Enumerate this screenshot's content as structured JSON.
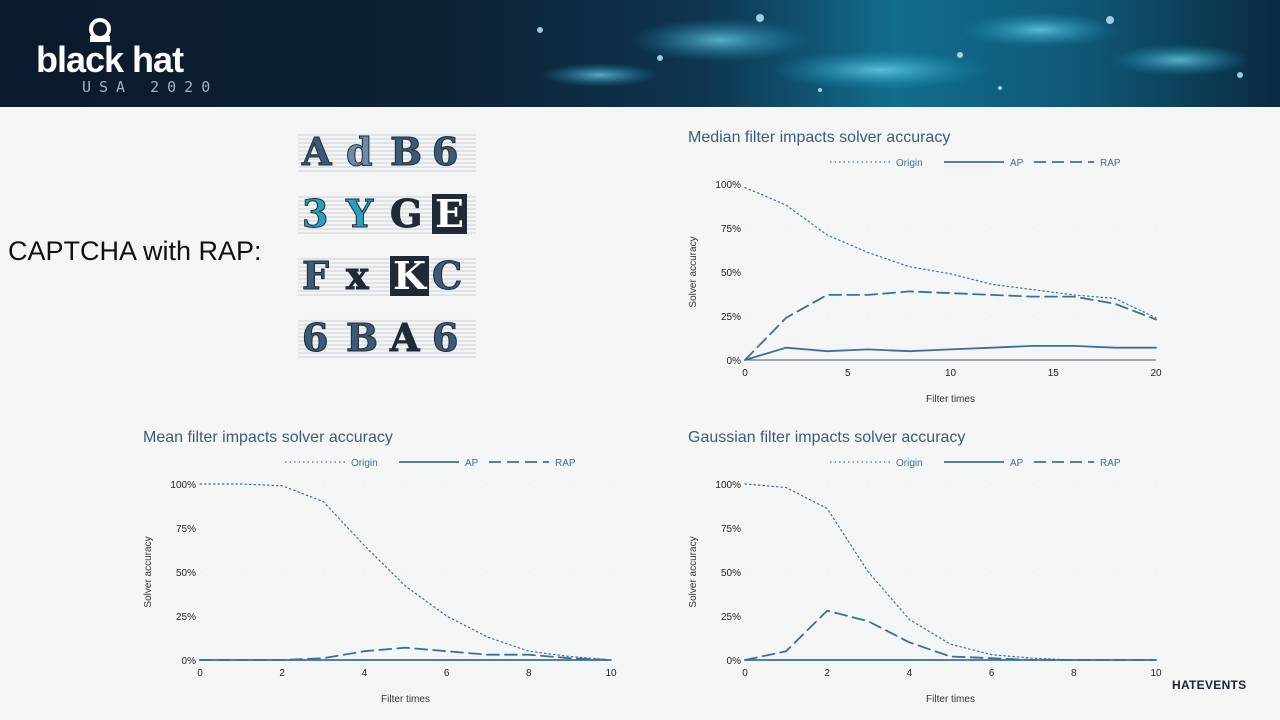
{
  "header": {
    "logo_text": "black hat",
    "logo_subtext": "USA 2020"
  },
  "captcha_title": "CAPTCHA with RAP:",
  "captchas": [
    {
      "chars": [
        "A",
        "d",
        "B",
        "6"
      ],
      "colors": [
        "#3b5a78",
        "#6f8aa8",
        "#3b5a78",
        "#3b5a78"
      ]
    },
    {
      "chars": [
        "3",
        "Y",
        "G",
        "E"
      ],
      "colors": [
        "#2aa0c0",
        "#2aa0c0",
        "#1f2a36",
        "#ffffff"
      ]
    },
    {
      "chars": [
        "F",
        "x",
        "K",
        "C"
      ],
      "colors": [
        "#3b5a78",
        "#1f2a36",
        "#ffffff",
        "#3b5a78"
      ]
    },
    {
      "chars": [
        "6",
        "B",
        "A",
        "6"
      ],
      "colors": [
        "#3b5a78",
        "#3b5a78",
        "#1f2a36",
        "#3b5a78"
      ]
    }
  ],
  "footer_brand": "HATEVENTS",
  "chart_data": [
    {
      "type": "line",
      "title": "Median filter impacts solver accuracy",
      "xlabel": "Filter times",
      "ylabel": "Solver accuracy",
      "xlim": [
        0,
        20
      ],
      "ylim": [
        0,
        100
      ],
      "xticks": [
        "0",
        "5",
        "10",
        "15",
        "20"
      ],
      "yticks": [
        "0%",
        "25%",
        "50%",
        "75%",
        "100%"
      ],
      "legend": [
        "Origin",
        "AP",
        "RAP"
      ],
      "x": [
        0,
        2,
        4,
        6,
        8,
        10,
        12,
        14,
        16,
        18,
        20
      ],
      "series": [
        {
          "name": "Origin",
          "values": [
            98,
            88,
            71,
            61,
            53,
            49,
            43,
            40,
            37,
            35,
            24
          ]
        },
        {
          "name": "AP",
          "values": [
            0,
            7,
            5,
            6,
            5,
            6,
            7,
            8,
            8,
            7,
            7
          ]
        },
        {
          "name": "RAP",
          "values": [
            0,
            24,
            37,
            37,
            39,
            38,
            37,
            36,
            36,
            32,
            23
          ]
        }
      ]
    },
    {
      "type": "line",
      "title": "Mean filter impacts solver accuracy",
      "xlabel": "Filter times",
      "ylabel": "Solver accuracy",
      "xlim": [
        0,
        10
      ],
      "ylim": [
        0,
        100
      ],
      "xticks": [
        "0",
        "2",
        "4",
        "6",
        "8",
        "10"
      ],
      "yticks": [
        "0%",
        "25%",
        "50%",
        "75%",
        "100%"
      ],
      "legend": [
        "Origin",
        "AP",
        "RAP"
      ],
      "x": [
        0,
        1,
        2,
        3,
        4,
        5,
        6,
        7,
        8,
        9,
        10
      ],
      "series": [
        {
          "name": "Origin",
          "values": [
            100,
            100,
            99,
            90,
            65,
            42,
            25,
            13,
            5,
            2,
            0
          ]
        },
        {
          "name": "AP",
          "values": [
            0,
            0,
            0,
            0,
            0,
            0,
            0,
            0,
            0,
            0,
            0
          ]
        },
        {
          "name": "RAP",
          "values": [
            0,
            0,
            0,
            1,
            5,
            7,
            5,
            3,
            3,
            1,
            0
          ]
        }
      ]
    },
    {
      "type": "line",
      "title": "Gaussian filter impacts solver accuracy",
      "xlabel": "Filter times",
      "ylabel": "Solver accuracy",
      "xlim": [
        0,
        10
      ],
      "ylim": [
        0,
        100
      ],
      "xticks": [
        "0",
        "2",
        "4",
        "6",
        "8",
        "10"
      ],
      "yticks": [
        "0%",
        "25%",
        "50%",
        "75%",
        "100%"
      ],
      "legend": [
        "Origin",
        "AP",
        "RAP"
      ],
      "x": [
        0,
        1,
        2,
        3,
        4,
        5,
        6,
        7,
        8,
        9,
        10
      ],
      "series": [
        {
          "name": "Origin",
          "values": [
            100,
            98,
            86,
            50,
            23,
            9,
            3,
            1,
            0,
            0,
            0
          ]
        },
        {
          "name": "AP",
          "values": [
            0,
            0,
            0,
            0,
            0,
            0,
            0,
            0,
            0,
            0,
            0
          ]
        },
        {
          "name": "RAP",
          "values": [
            0,
            5,
            28,
            22,
            10,
            2,
            1,
            0,
            0,
            0,
            0
          ]
        }
      ]
    }
  ]
}
